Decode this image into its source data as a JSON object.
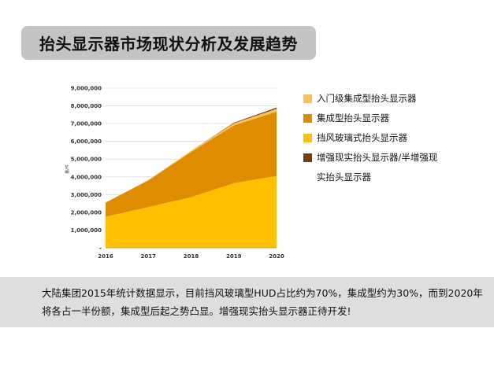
{
  "title": "抬头显示器市场现状分析及发展趋势",
  "chart_data": {
    "type": "area",
    "stacked": true,
    "x": [
      "2016",
      "2017",
      "2018",
      "2019",
      "2020"
    ],
    "ylabel": "量/件",
    "ylim": [
      0,
      9000000
    ],
    "yticks": [
      "9,000,000",
      "8,000,000",
      "7,000,000",
      "6,000,000",
      "5,000,000",
      "4,000,000",
      "3,000,000",
      "2,000,000",
      "1,000,000",
      "-"
    ],
    "grid": true,
    "legend_position": "right",
    "series": [
      {
        "name": "增强现实抬头显示器/半增强现实抬头显示器",
        "color": "#7a3c08",
        "values": [
          0,
          0,
          0,
          30000,
          60000
        ]
      },
      {
        "name": "挡风玻璃式抬头显示器",
        "color": "#ffc000",
        "values": [
          1750000,
          2300000,
          2850000,
          3650000,
          4050000
        ]
      },
      {
        "name": "集成型抬头显示器",
        "color": "#e08c00",
        "values": [
          800000,
          1500000,
          2550000,
          3250000,
          3620000
        ]
      },
      {
        "name": "入门级集成型抬头显示器",
        "color": "#fbc05e",
        "values": [
          0,
          20000,
          60000,
          120000,
          170000
        ]
      }
    ]
  },
  "legend": [
    {
      "label": "入门级集成型抬头显示器",
      "color": "#fbc05e"
    },
    {
      "label": "集成型抬头显示器",
      "color": "#e08c00"
    },
    {
      "label": "挡风玻璃式抬头显示器",
      "color": "#ffc000"
    },
    {
      "label": "增强现实抬头显示器/半增强现实抬头显示器",
      "color": "#7a3c08"
    }
  ],
  "footer_text": "大陆集团2015年统计数据显示，目前挡风玻璃型HUD占比约为70%，集成型约为30%，而到2020年将各占一半份额，集成型后起之势凸显。增强现实抬头显示器正待开发!"
}
